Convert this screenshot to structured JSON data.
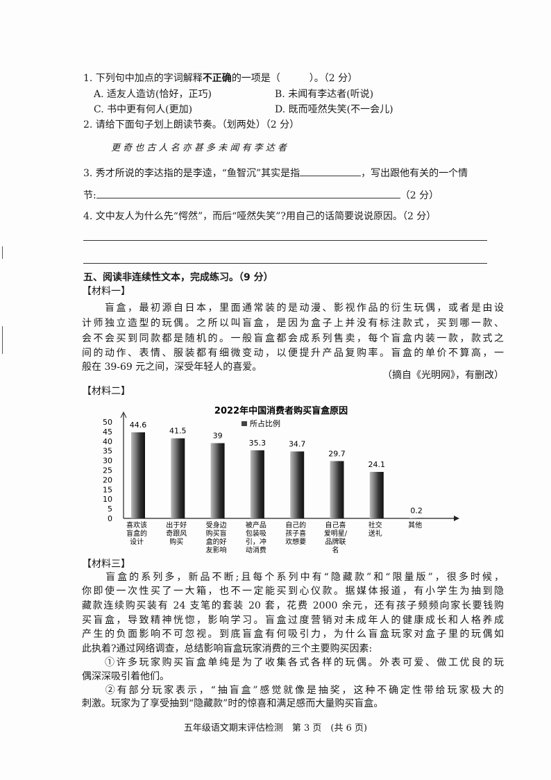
{
  "q1": {
    "prefix": "1. 下列句中加点的字词解释",
    "bold": "不正确",
    "suffix": "的一项是（　　　）。（2 分）",
    "options": [
      "A. 适友人造访(恰好，正巧)",
      "B. 未闻有李达者(听说)",
      "C. 书中更有何人(更加)",
      "D. 既而哑然失笑(不一会儿)"
    ]
  },
  "q2": {
    "text": "2. 请给下面句子划上朗读节奏。（划两处）（2 分）",
    "sentence": "更 奇 也 古 人 名 亦 甚 多 未 闻 有 李 达 者"
  },
  "q3": {
    "line1_a": "3. 秀才所说的李达指的是李逵，“鱼智沉”其实是指",
    "line1_b": "，写出跟他有关的一个情",
    "line2_a": "节:",
    "line2_b": "（2 分）"
  },
  "q4": {
    "text": "4. 文中友人为什么先“愕然”，而后“哑然失笑”?用自己的话简要说说原因。（2 分）"
  },
  "section5": {
    "title": "五、阅读非连续性文本，完成练习。（9 分）",
    "m1_label": "【材料一】",
    "m1_lines": [
      "　　盲盒，最初源自日本，里面通常装的是动漫、影视作品的衍生玩偶，或者是由设",
      "计师独立造型的玩偶。之所以叫盲盒，是因为盒子上并没有标注款式，买到哪一款、",
      "会不会买到同款都是随机的。一般盲盒都会成系列售卖，每个盲盒内装一款，款式之",
      "间的动作、表情、服装都有细微变动，以便提升产品复购率。盲盒的单价不算高，一",
      "般在 39-69 元之间，深受年轻人的喜爱。"
    ],
    "m1_source": "（摘自《光明网》，有删改）",
    "m2_label": "【材料二】",
    "m3_label": "【材料三】",
    "m3_lines": [
      "　　盲盒的系列多，新品不断;且每个系列中有“隐藏款”和“限量版”，很多时候，",
      "你即使一次性买了一大箱，也不一定能买到心仪款。据媒体报道，有小学生为抽到隐",
      "藏款连续购买装有 24 支笔的套装 20 套，花费 2000 余元，还有孩子频频向家长要钱购",
      "买盲盒，导致精神恍惚，影响学习。盲盒过度营销对未成年人的健康成长和人格养成",
      "产生的负面影响不可忽视。到底盲盒有何吸引力，为什么盲盒玩家对盒子里的玩偶如",
      "此执着?通过网络调查，总结影响盲盒玩家消费的三个主要购买因素:",
      "　　①许多玩家购买盲盒单纯是为了收集各式各样的玩偶。外表可爱、做工优良的玩",
      "偶深深吸引着他们。",
      "　　②有部分玩家表示，“抽盲盒”感觉就像是抽奖，这种不确定性带给玩家极大的",
      "刺激。玩家为了享受抽到“隐藏款”时的惊喜和满足感而大量购买盲盒。"
    ]
  },
  "footer": "五年级语文期末评估检测　第 3 页　(共 6 页)",
  "chart_data": {
    "type": "bar",
    "title": "2022年中国消费者购买盲盒原因",
    "legend": "所占比例",
    "legend_position": "top-center",
    "categories": [
      [
        "喜欢该",
        "盲盒的",
        "设计"
      ],
      [
        "出于好",
        "奇跟风",
        "购买"
      ],
      [
        "受身边",
        "购买盲",
        "盒的好",
        "友影响"
      ],
      [
        "被产品",
        "包装吸",
        "引，冲",
        "动消费"
      ],
      [
        "自己的",
        "孩子喜",
        "欢想要"
      ],
      [
        "自己喜",
        "爱明星/",
        "品牌联",
        "名"
      ],
      [
        "社交",
        "送礼"
      ],
      [
        "其他"
      ]
    ],
    "values": [
      44.6,
      41.5,
      39,
      35.3,
      34.7,
      29.7,
      24.1,
      0.2
    ],
    "value_labels": [
      "44.6",
      "41.5",
      "39",
      "35.3",
      "34.7",
      "29.7",
      "24.1",
      "0.2"
    ],
    "yticks": [
      "0",
      "5",
      "10",
      "15",
      "20",
      "25",
      "30",
      "35",
      "40",
      "45",
      "50"
    ],
    "ylim": [
      0,
      50
    ],
    "grid": false,
    "bar_color": "#3a3a3a"
  }
}
